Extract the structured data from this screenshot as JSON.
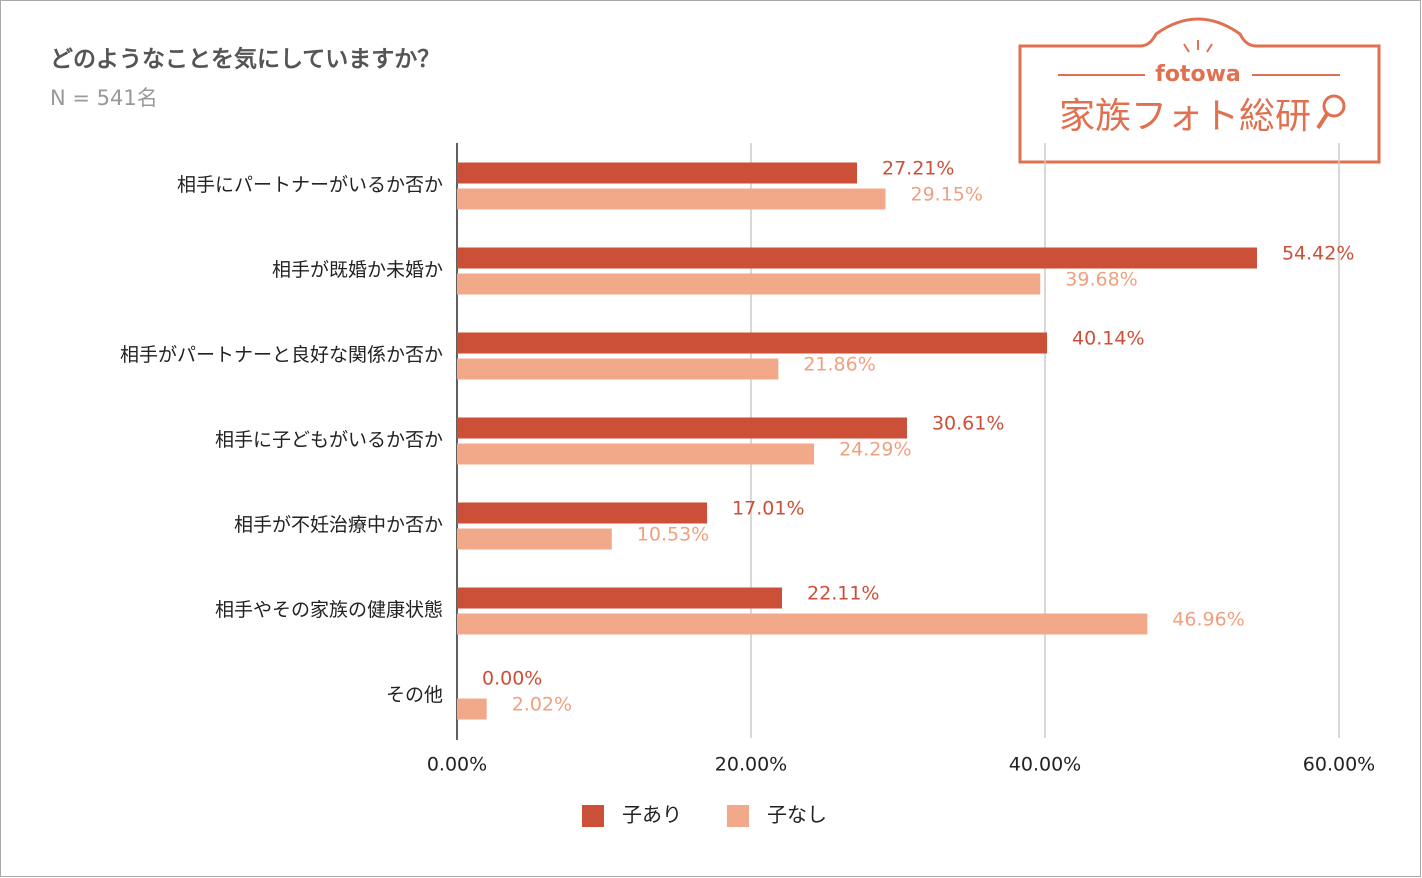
{
  "chart_data": {
    "type": "hbar",
    "title": "どのようなことを気にしていますか？",
    "subtitle": "N = 541名",
    "logo": {
      "brand": "fotowa",
      "name": "家族フォト総研"
    },
    "categories": [
      "相手にパートナーがいるか否か",
      "相手が既婚か未婚か",
      "相手がパートナーと良好な関係か否か",
      "相手に子どもがいるか否か",
      "相手が不妊治療中か否か",
      "相手やその家族の健康状態",
      "その他"
    ],
    "series": [
      {
        "name": "子あり",
        "color": "#cc4f37",
        "label_color": "#cc4f37",
        "values": [
          27.21,
          54.42,
          40.14,
          30.61,
          17.01,
          22.11,
          0.0
        ],
        "value_labels": [
          "27.21%",
          "54.42%",
          "40.14%",
          "30.61%",
          "17.01%",
          "22.11%",
          "0.00%"
        ]
      },
      {
        "name": "子なし",
        "color": "#f2a98a",
        "label_color": "#f0a07f",
        "values": [
          29.15,
          39.68,
          21.86,
          24.29,
          10.53,
          46.96,
          2.02
        ],
        "value_labels": [
          "29.15%",
          "39.68%",
          "21.86%",
          "24.29%",
          "10.53%",
          "46.96%",
          "2.02%"
        ]
      }
    ],
    "xlim": [
      0,
      60
    ],
    "xticks": [
      {
        "value": 0,
        "label": "0.00%"
      },
      {
        "value": 20,
        "label": "20.00%"
      },
      {
        "value": 40,
        "label": "40.00%"
      },
      {
        "value": 60,
        "label": "60.00%"
      }
    ],
    "grid": true,
    "legend": "bottom"
  }
}
